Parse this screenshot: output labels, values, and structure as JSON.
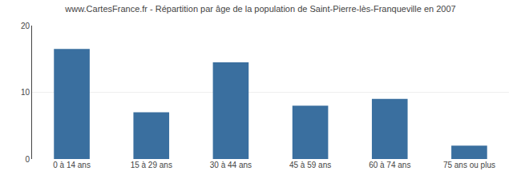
{
  "chart_data": {
    "type": "bar",
    "title": "www.CartesFrance.fr - Répartition par âge de la population de Saint-Pierre-lès-Franqueville en 2007",
    "categories": [
      "0 à 14 ans",
      "15 à 29 ans",
      "30 à 44 ans",
      "45 à 59 ans",
      "60 à 74 ans",
      "75 ans ou plus"
    ],
    "values": [
      16.5,
      7.0,
      14.5,
      8.0,
      9.0,
      2.0
    ],
    "color": "#3a6f9f",
    "ylim": [
      0,
      20
    ],
    "yticks": [
      0,
      10,
      20
    ],
    "grid": true
  }
}
